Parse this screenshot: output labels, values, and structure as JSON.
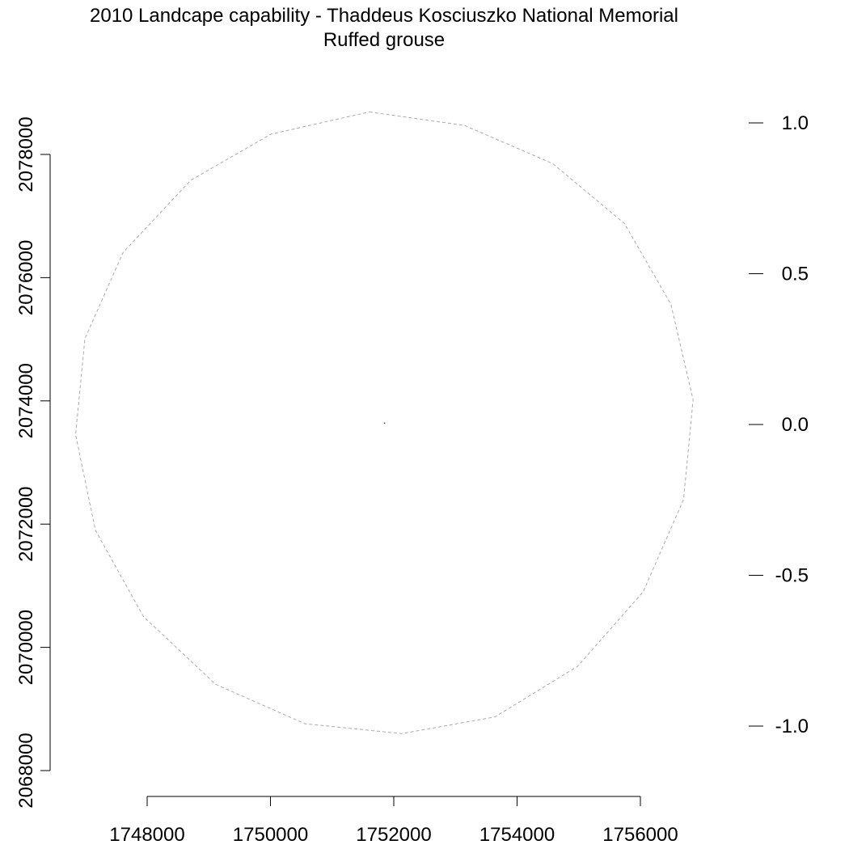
{
  "chart_data": {
    "type": "map",
    "title": "2010 Landcape capability - Thaddeus Kosciuszko National Memorial",
    "subtitle": "Ruffed grouse",
    "x_axis": {
      "ticks": [
        1748000,
        1750000,
        1752000,
        1754000,
        1756000
      ],
      "tick_labels": [
        "1748000",
        "1750000",
        "1752000",
        "1754000",
        "1756000"
      ],
      "range": [
        1748000,
        1756000
      ]
    },
    "y_axis": {
      "ticks": [
        2068000,
        2070000,
        2072000,
        2074000,
        2076000,
        2078000
      ],
      "tick_labels": [
        "2068000",
        "2070000",
        "2072000",
        "2074000",
        "2076000",
        "2078000"
      ],
      "range": [
        2068000,
        2078000
      ]
    },
    "legend_scale": {
      "ticks": [
        1.0,
        0.5,
        0.0,
        -0.5,
        -1.0
      ],
      "tick_labels": [
        "1.0",
        "0.5",
        "0.0",
        "-0.5",
        "-1.0"
      ],
      "placement": "right"
    },
    "boundary": {
      "style": "dashed",
      "color": "#aaaaaa",
      "points": [
        [
          1751605,
          2078690
        ],
        [
          1753150,
          2078470
        ],
        [
          1754580,
          2077850
        ],
        [
          1755740,
          2076880
        ],
        [
          1756495,
          2075570
        ],
        [
          1756855,
          2074020
        ],
        [
          1756700,
          2072400
        ],
        [
          1756045,
          2070900
        ],
        [
          1754980,
          2069690
        ],
        [
          1753640,
          2068870
        ],
        [
          1752130,
          2068600
        ],
        [
          1750560,
          2068760
        ],
        [
          1749110,
          2069400
        ],
        [
          1747940,
          2070500
        ],
        [
          1747160,
          2071900
        ],
        [
          1746840,
          2073450
        ],
        [
          1746990,
          2075010
        ],
        [
          1747610,
          2076410
        ],
        [
          1748705,
          2077580
        ],
        [
          1750010,
          2078330
        ]
      ]
    },
    "center_point": {
      "x": 1751850,
      "y": 2073640
    },
    "colors": {
      "axis": "#000000",
      "boundary": "#aaaaaa",
      "point": "#444444"
    }
  }
}
